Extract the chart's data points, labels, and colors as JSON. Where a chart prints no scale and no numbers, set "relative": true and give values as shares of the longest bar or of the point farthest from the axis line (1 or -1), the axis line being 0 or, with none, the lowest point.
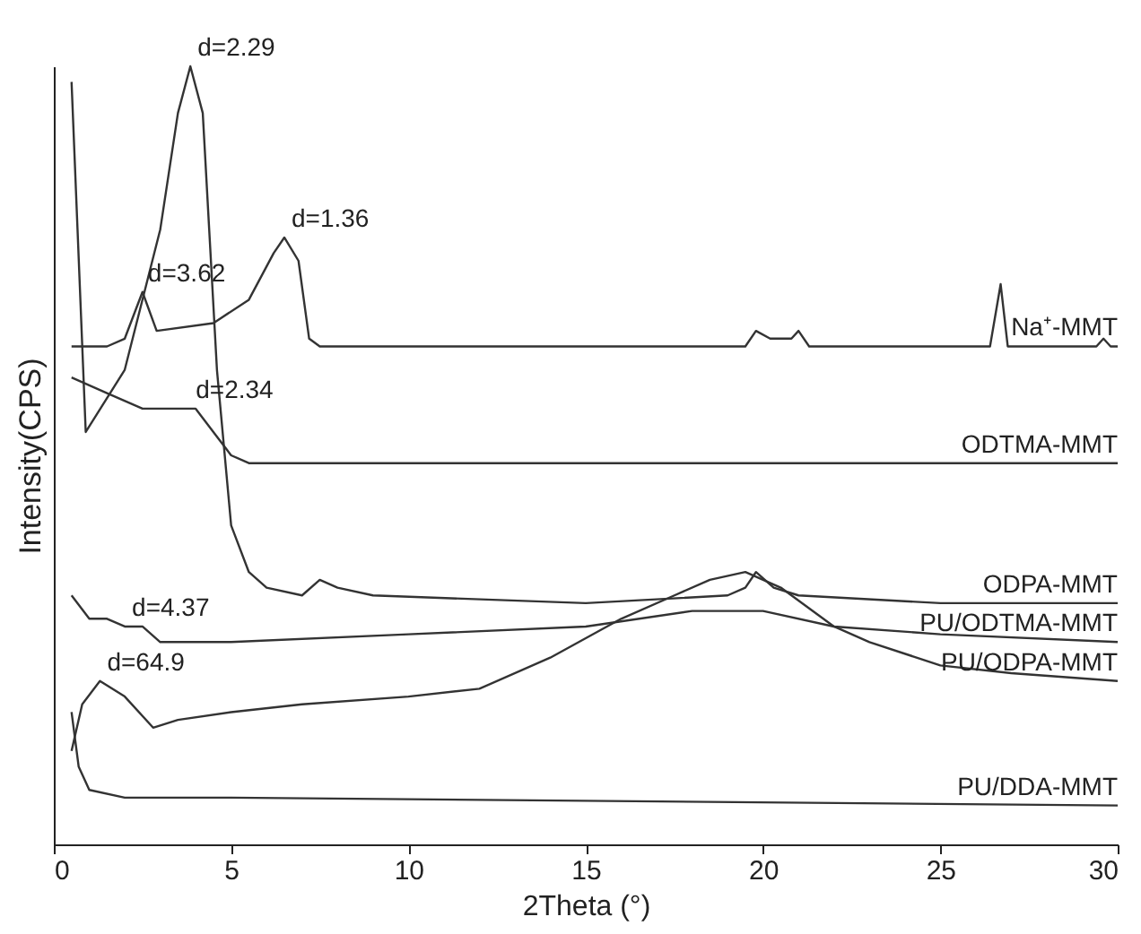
{
  "chart_data": {
    "type": "line",
    "relative": true,
    "xlabel": "2Theta (°)",
    "ylabel": "Intensity(CPS)",
    "xlim": [
      0,
      30
    ],
    "xticks": [
      0,
      5,
      10,
      15,
      20,
      25,
      30
    ],
    "grid": false,
    "marker": "none",
    "line_style": "solid",
    "series": [
      {
        "name": "Na⁺-MMT",
        "color": "#333333",
        "x": [
          0.5,
          1.5,
          2,
          2.5,
          2.9,
          4.5,
          5.5,
          6.2,
          6.5,
          6.9,
          7.2,
          7.5,
          19.5,
          19.8,
          20.2,
          20.8,
          21,
          21.3,
          26.4,
          26.7,
          26.9,
          29.4,
          29.6,
          29.8,
          30
        ],
        "values": [
          0.64,
          0.64,
          0.65,
          0.71,
          0.66,
          0.67,
          0.7,
          0.76,
          0.78,
          0.75,
          0.65,
          0.64,
          0.64,
          0.66,
          0.65,
          0.65,
          0.66,
          0.64,
          0.64,
          0.72,
          0.64,
          0.64,
          0.65,
          0.64,
          0.64
        ]
      },
      {
        "name": "ODTMA-MMT",
        "color": "#333333",
        "x": [
          0.5,
          1.5,
          2.5,
          3.5,
          4,
          4.5,
          5,
          5.5,
          30
        ],
        "values": [
          0.6,
          0.58,
          0.56,
          0.56,
          0.56,
          0.53,
          0.5,
          0.49,
          0.49
        ]
      },
      {
        "name": "ODPA-MMT",
        "color": "#333333",
        "x": [
          0.5,
          0.9,
          2,
          3,
          3.5,
          3.85,
          4.2,
          4.6,
          5,
          5.5,
          6,
          7,
          7.5,
          8,
          9,
          15,
          19,
          19.5,
          19.8,
          20.3,
          21,
          25,
          30
        ],
        "values": [
          0.98,
          0.53,
          0.61,
          0.79,
          0.94,
          1.0,
          0.94,
          0.61,
          0.41,
          0.35,
          0.33,
          0.32,
          0.34,
          0.33,
          0.32,
          0.31,
          0.32,
          0.33,
          0.35,
          0.33,
          0.32,
          0.31,
          0.31
        ]
      },
      {
        "name": "PU/ODTMA-MMT",
        "color": "#333333",
        "x": [
          0.5,
          1,
          1.5,
          2,
          2.5,
          3,
          5,
          10,
          15,
          18,
          20,
          22,
          25,
          30
        ],
        "values": [
          0.32,
          0.29,
          0.29,
          0.28,
          0.28,
          0.26,
          0.26,
          0.27,
          0.28,
          0.3,
          0.3,
          0.28,
          0.27,
          0.26
        ]
      },
      {
        "name": "PU/ODPA-MMT",
        "color": "#333333",
        "x": [
          0.5,
          0.8,
          1.3,
          2,
          2.8,
          3.5,
          5,
          7,
          10,
          12,
          14,
          16,
          17.5,
          18.5,
          19.5,
          20.5,
          22,
          23,
          25,
          27,
          30
        ],
        "values": [
          0.12,
          0.18,
          0.21,
          0.19,
          0.15,
          0.16,
          0.17,
          0.18,
          0.19,
          0.2,
          0.24,
          0.29,
          0.32,
          0.34,
          0.35,
          0.33,
          0.28,
          0.26,
          0.23,
          0.22,
          0.21
        ]
      },
      {
        "name": "PU/DDA-MMT",
        "color": "#333333",
        "x": [
          0.5,
          0.7,
          1,
          2,
          5,
          30
        ],
        "values": [
          0.17,
          0.1,
          0.07,
          0.06,
          0.06,
          0.05
        ]
      }
    ],
    "annotations": [
      {
        "text": "d=2.29",
        "x": 3.85,
        "y": 1.0
      },
      {
        "text": "d=1.36",
        "x": 6.5,
        "y": 0.78
      },
      {
        "text": "d=3.62",
        "x": 2.45,
        "y": 0.71
      },
      {
        "text": "d=2.34",
        "x": 3.8,
        "y": 0.56
      },
      {
        "text": "d=4.37",
        "x": 2,
        "y": 0.28
      },
      {
        "text": "d=64.9",
        "x": 1.3,
        "y": 0.21
      }
    ]
  }
}
